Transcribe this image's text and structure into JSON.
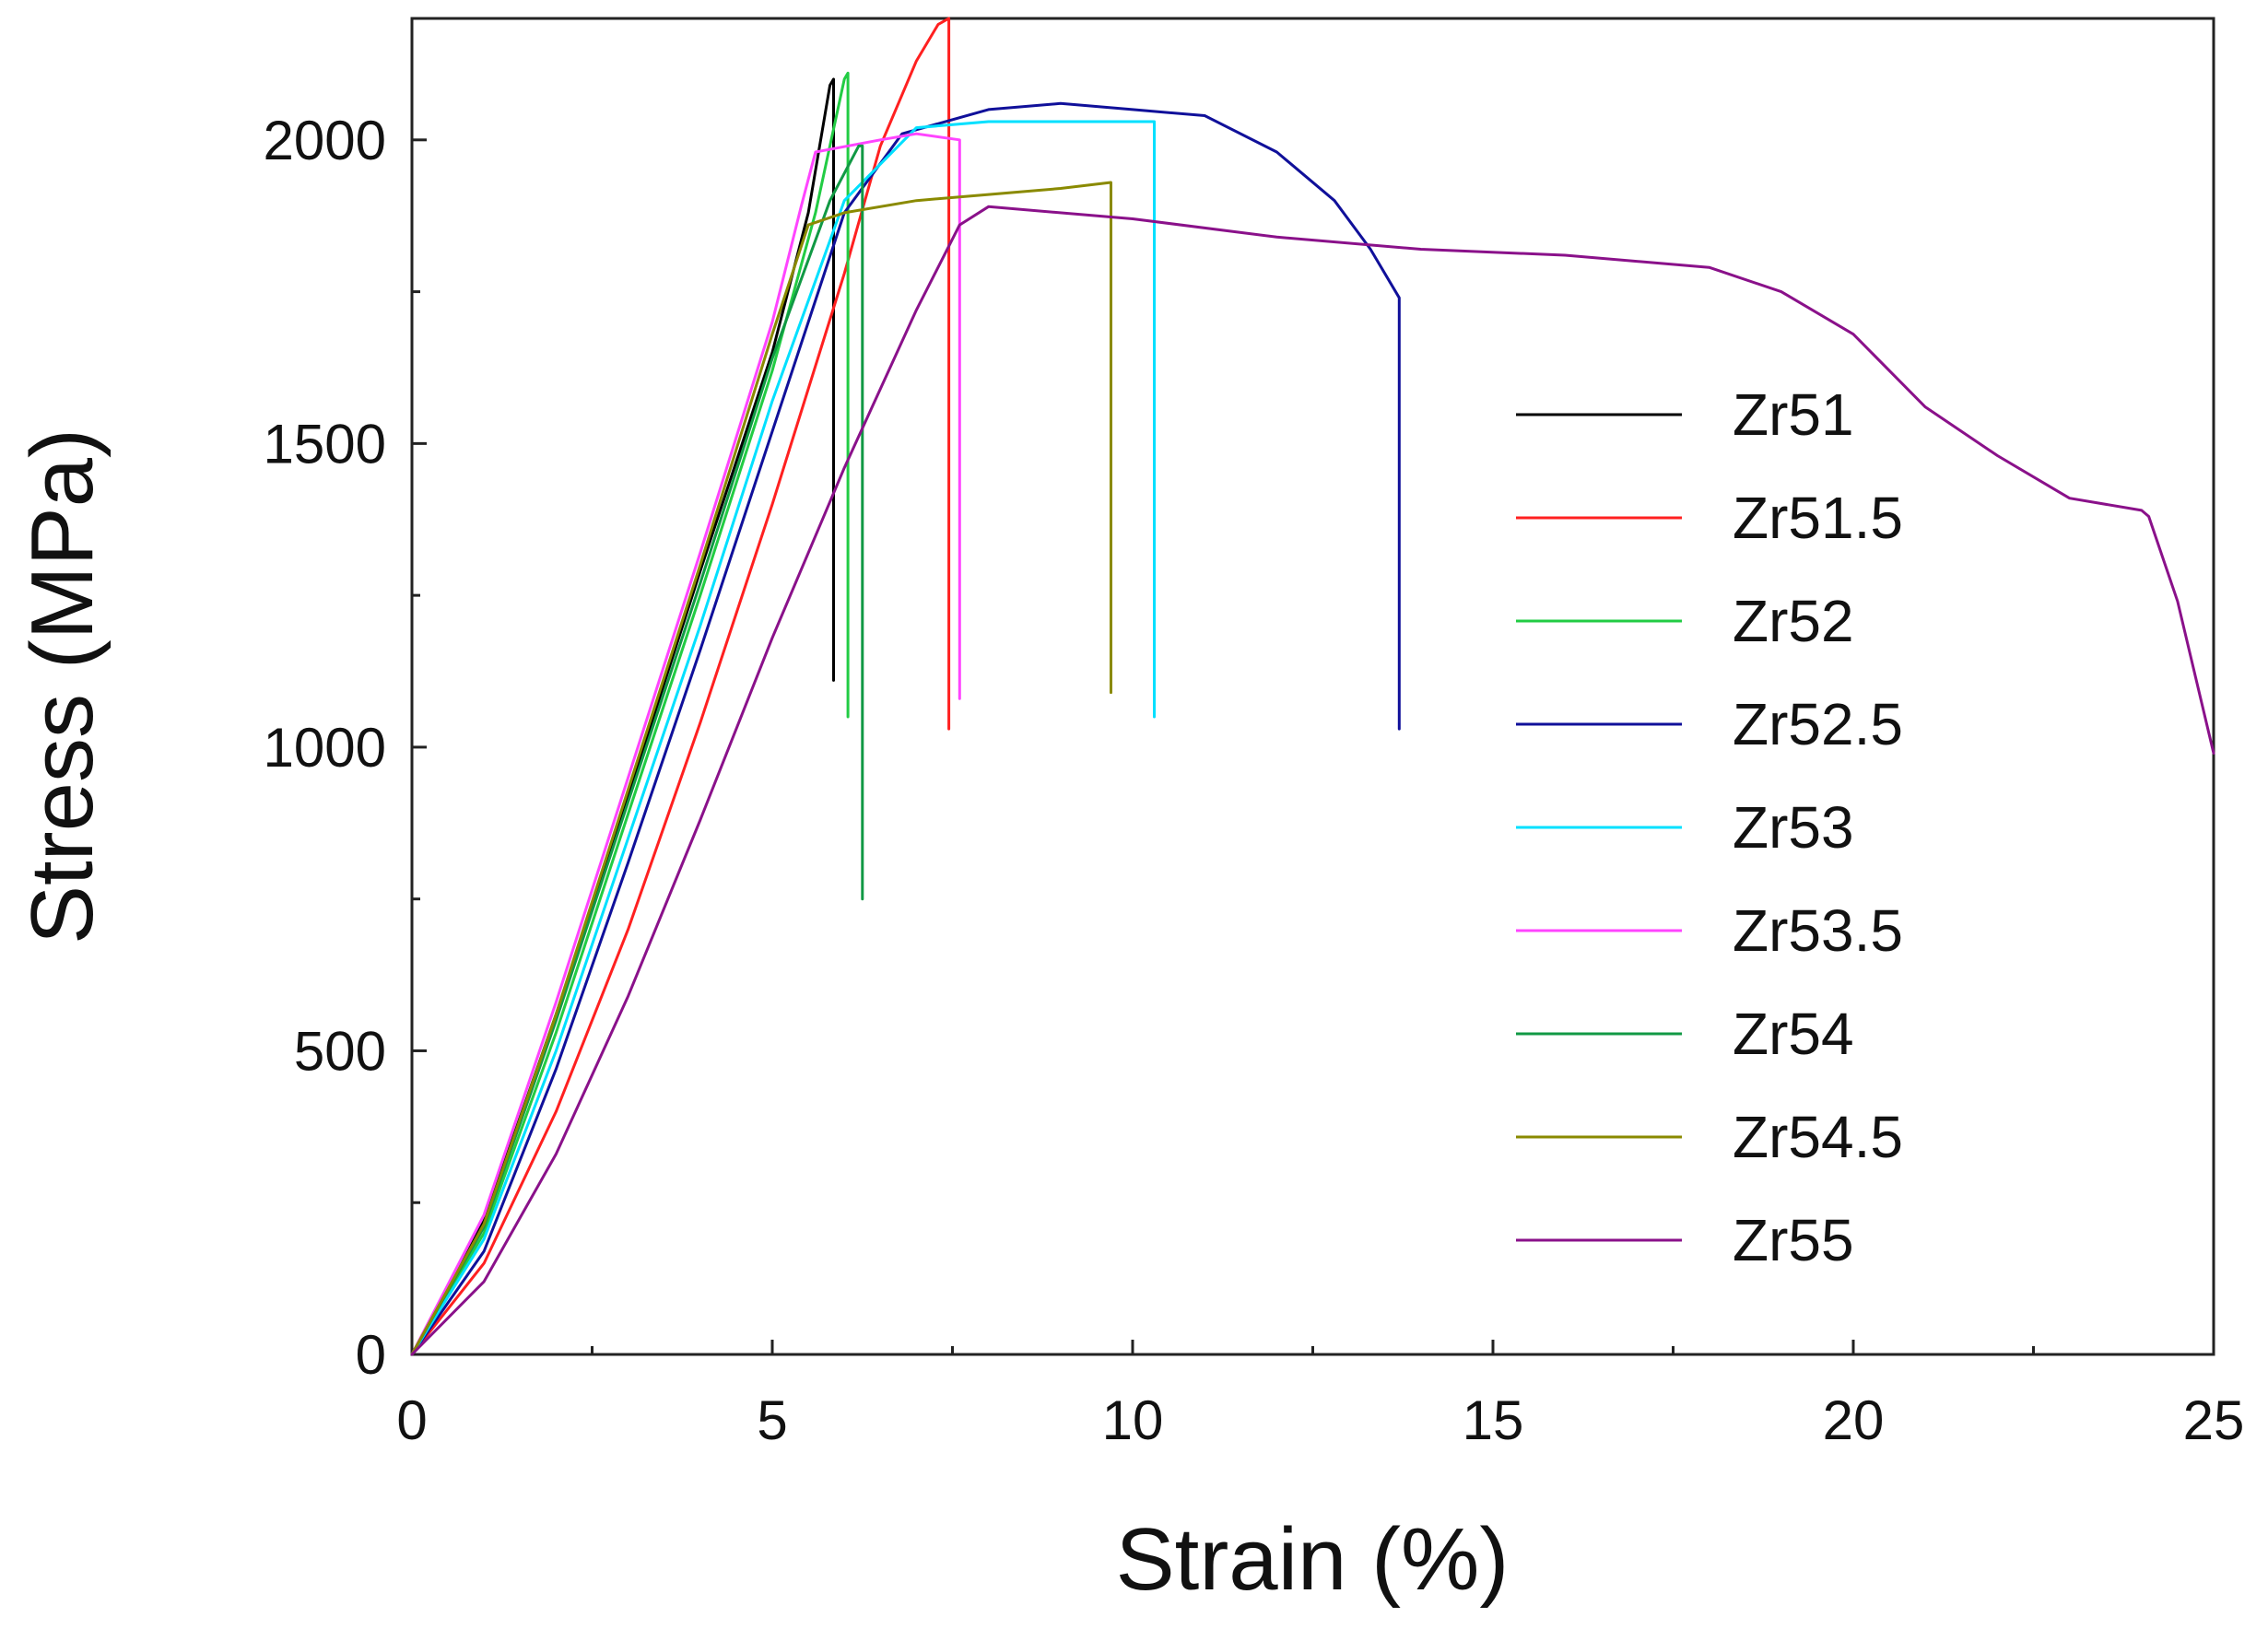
{
  "chart_data": {
    "type": "line",
    "title": "",
    "xlabel": "Strain (%)",
    "ylabel": "Stress (MPa)",
    "xlim": [
      0,
      25
    ],
    "ylim": [
      0,
      2200
    ],
    "xticks": [
      0,
      5,
      10,
      15,
      20,
      25
    ],
    "yticks": [
      0,
      500,
      1000,
      1500,
      2000
    ],
    "grid": false,
    "legend_position": "right",
    "series": [
      {
        "name": "Zr51",
        "color": "#000000",
        "points": [
          [
            0,
            0
          ],
          [
            1,
            220
          ],
          [
            2,
            560
          ],
          [
            3,
            920
          ],
          [
            4,
            1290
          ],
          [
            5,
            1650
          ],
          [
            5.5,
            1880
          ],
          [
            5.8,
            2090
          ],
          [
            5.85,
            2100
          ],
          [
            5.85,
            1110
          ]
        ]
      },
      {
        "name": "Zr51.5",
        "color": "#ff2020",
        "points": [
          [
            0,
            0
          ],
          [
            1,
            150
          ],
          [
            2,
            400
          ],
          [
            3,
            700
          ],
          [
            4,
            1040
          ],
          [
            5,
            1400
          ],
          [
            6,
            1780
          ],
          [
            6.5,
            1990
          ],
          [
            7,
            2130
          ],
          [
            7.3,
            2190
          ],
          [
            7.45,
            2200
          ],
          [
            7.45,
            1030
          ]
        ]
      },
      {
        "name": "Zr52",
        "color": "#22cc44",
        "points": [
          [
            0,
            0
          ],
          [
            1,
            200
          ],
          [
            2,
            530
          ],
          [
            3,
            890
          ],
          [
            4,
            1250
          ],
          [
            5,
            1620
          ],
          [
            5.6,
            1880
          ],
          [
            6.0,
            2100
          ],
          [
            6.05,
            2110
          ],
          [
            6.05,
            1050
          ]
        ]
      },
      {
        "name": "Zr52.5",
        "color": "#10109a",
        "points": [
          [
            0,
            0
          ],
          [
            1,
            170
          ],
          [
            2,
            470
          ],
          [
            3,
            810
          ],
          [
            4,
            1160
          ],
          [
            5,
            1520
          ],
          [
            6,
            1880
          ],
          [
            6.8,
            2010
          ],
          [
            8,
            2050
          ],
          [
            9,
            2060
          ],
          [
            10,
            2050
          ],
          [
            11,
            2040
          ],
          [
            12,
            1980
          ],
          [
            12.8,
            1900
          ],
          [
            13.3,
            1820
          ],
          [
            13.7,
            1740
          ],
          [
            13.7,
            1030
          ]
        ]
      },
      {
        "name": "Zr53",
        "color": "#00e0ff",
        "points": [
          [
            0,
            0
          ],
          [
            1,
            190
          ],
          [
            2,
            500
          ],
          [
            3,
            850
          ],
          [
            4,
            1200
          ],
          [
            5,
            1570
          ],
          [
            6,
            1900
          ],
          [
            7,
            2020
          ],
          [
            8,
            2030
          ],
          [
            9,
            2030
          ],
          [
            10,
            2030
          ],
          [
            10.3,
            2030
          ],
          [
            10.3,
            1050
          ]
        ]
      },
      {
        "name": "Zr53.5",
        "color": "#ff44ff",
        "points": [
          [
            0,
            0
          ],
          [
            1,
            230
          ],
          [
            2,
            580
          ],
          [
            3,
            950
          ],
          [
            4,
            1320
          ],
          [
            5,
            1700
          ],
          [
            5.4,
            1890
          ],
          [
            5.6,
            1980
          ],
          [
            6.5,
            2000
          ],
          [
            7,
            2010
          ],
          [
            7.6,
            2000
          ],
          [
            7.6,
            1080
          ]
        ]
      },
      {
        "name": "Zr54",
        "color": "#119944",
        "points": [
          [
            0,
            0
          ],
          [
            1,
            210
          ],
          [
            2,
            550
          ],
          [
            3,
            910
          ],
          [
            4,
            1270
          ],
          [
            5,
            1640
          ],
          [
            5.8,
            1900
          ],
          [
            6.2,
            1990
          ],
          [
            6.25,
            1990
          ],
          [
            6.25,
            750
          ]
        ]
      },
      {
        "name": "Zr54.5",
        "color": "#8a8a00",
        "points": [
          [
            0,
            0
          ],
          [
            1,
            215
          ],
          [
            2,
            560
          ],
          [
            3,
            930
          ],
          [
            4,
            1300
          ],
          [
            5,
            1680
          ],
          [
            5.5,
            1860
          ],
          [
            6,
            1880
          ],
          [
            7,
            1900
          ],
          [
            8,
            1910
          ],
          [
            9,
            1920
          ],
          [
            9.7,
            1930
          ],
          [
            9.7,
            1090
          ]
        ]
      },
      {
        "name": "Zr55",
        "color": "#8a118a",
        "points": [
          [
            0,
            0
          ],
          [
            1,
            120
          ],
          [
            2,
            330
          ],
          [
            3,
            590
          ],
          [
            4,
            880
          ],
          [
            5,
            1180
          ],
          [
            6,
            1460
          ],
          [
            7,
            1720
          ],
          [
            7.6,
            1860
          ],
          [
            8,
            1890
          ],
          [
            10,
            1870
          ],
          [
            12,
            1840
          ],
          [
            14,
            1820
          ],
          [
            16,
            1810
          ],
          [
            18,
            1790
          ],
          [
            19,
            1750
          ],
          [
            20,
            1680
          ],
          [
            21,
            1560
          ],
          [
            22,
            1480
          ],
          [
            23,
            1410
          ],
          [
            24,
            1390
          ],
          [
            24.1,
            1380
          ],
          [
            24.5,
            1240
          ],
          [
            25,
            990
          ]
        ]
      }
    ]
  }
}
